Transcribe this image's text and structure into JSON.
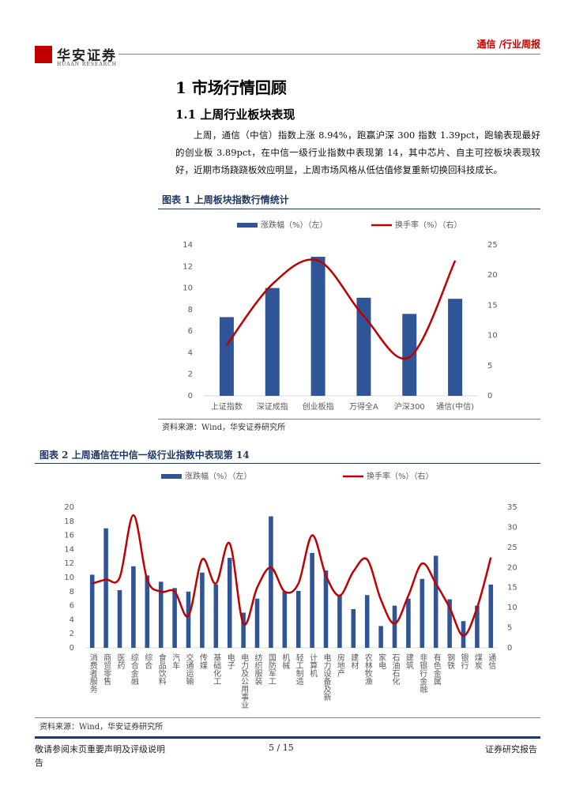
{
  "header": {
    "brand": "华安证券",
    "brand_en": "HUAAN RESEARCH",
    "right": "通信 /行业周报"
  },
  "section": {
    "title": "1 市场行情回顾"
  },
  "subsection": {
    "title": "1.1 上周行业板块表现"
  },
  "paragraph": "上周，通信（中信）指数上涨 8.94%，跑赢沪深 300 指数 1.39pct，跑输表现最好的创业板 3.89pct，在中信一级行业指数中表现第 14，其中芯片、自主可控板块表现较好，近期市场跷跷板效应明显，上周市场风格从低估值修复重新切换回科技成长。",
  "figures": [
    {
      "title": "图表 1 上周板块指数行情统计",
      "source": "资料来源：Wind，华安证券研究所"
    },
    {
      "title": "图表 2 上周通信在中信一级行业指数中表现第 14",
      "source": "资料来源：Wind，华安证券研究所"
    }
  ],
  "chart_data": [
    {
      "type": "combo",
      "categories": [
        "上证指数",
        "深证成指",
        "创业板指",
        "万得全A",
        "沪深300",
        "通信(中信)"
      ],
      "series": [
        {
          "name": "涨跌幅（%）（左）",
          "color": "#2f5597",
          "values": [
            7.3,
            10.0,
            12.9,
            9.1,
            7.6,
            9.0
          ]
        },
        {
          "name": "换手率（%）（右）",
          "color": "#c00000",
          "axis": "y2",
          "values": [
            8.4,
            18.5,
            22.4,
            13.2,
            6.4,
            22.4
          ]
        }
      ],
      "ylim": [
        0,
        14
      ],
      "yticks": [
        0,
        2,
        4,
        6,
        8,
        10,
        12,
        14
      ],
      "y2lim": [
        0,
        25
      ],
      "y2ticks": [
        0,
        5,
        10,
        15,
        20,
        25
      ],
      "legend": "top",
      "grid": false
    },
    {
      "type": "combo",
      "categories": [
        "消费者服务",
        "商贸零售",
        "医药",
        "综合金融",
        "综合",
        "食品饮料",
        "汽车",
        "交通运输",
        "传媒",
        "基础化工",
        "电子",
        "电力及公用事业",
        "纺织服装",
        "国防军工",
        "机械",
        "轻工制造",
        "计算机",
        "电力设备及新",
        "房地产",
        "建材",
        "农林牧渔",
        "家电",
        "石油石化",
        "建筑",
        "非银行金融",
        "有色金属",
        "钢铁",
        "银行",
        "煤炭",
        "通信"
      ],
      "series": [
        {
          "name": "涨跌幅（%）（左）",
          "color": "#2f5597",
          "values": [
            10.4,
            17.0,
            8.2,
            11.6,
            10.3,
            9.4,
            8.5,
            8.0,
            10.7,
            9.0,
            12.8,
            5.0,
            7.0,
            18.7,
            8.0,
            8.1,
            13.5,
            11.0,
            7.5,
            5.5,
            7.5,
            3.1,
            6.0,
            7.0,
            9.8,
            13.1,
            6.9,
            3.8,
            6.0,
            9.0
          ]
        },
        {
          "name": "换手率（%）（右）",
          "color": "#c00000",
          "axis": "y2",
          "values": [
            16,
            17,
            17.5,
            33,
            17,
            14,
            14,
            8,
            22,
            16,
            26,
            6,
            15,
            20,
            14,
            16,
            28,
            18,
            13,
            19,
            22,
            12,
            6,
            13,
            21,
            16,
            10,
            3,
            10,
            22.5
          ]
        }
      ],
      "ylim": [
        0,
        20
      ],
      "yticks": [
        0,
        2,
        4,
        6,
        8,
        10,
        12,
        14,
        16,
        18,
        20
      ],
      "y2lim": [
        0,
        35
      ],
      "y2ticks": [
        0,
        5,
        10,
        15,
        20,
        25,
        30,
        35
      ],
      "legend": "top",
      "grid": false
    }
  ],
  "footer": {
    "left": "敬请参阅末页重要声明及评级说明告",
    "page": "5 / 15",
    "right": "证券研究报告"
  }
}
